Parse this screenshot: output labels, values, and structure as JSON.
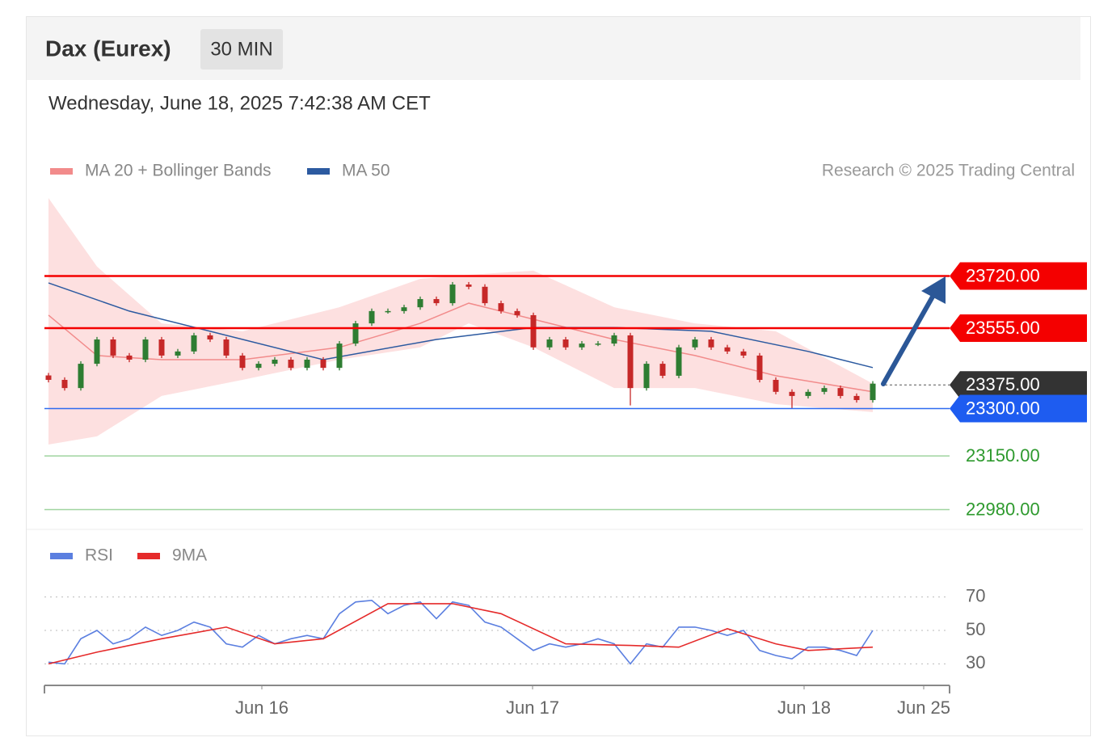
{
  "header": {
    "title": "Dax (Eurex)",
    "interval": "30 MIN",
    "date": "Wednesday, June 18, 2025 7:42:38 AM CET",
    "credit": "Research © 2025 Trading Central"
  },
  "chart_data": [
    {
      "type": "candlestick",
      "xlim": [
        -0.25,
        55.75
      ],
      "ylim": [
        22930,
        23980
      ],
      "up_color": "#2e7d32",
      "down_color": "#c62828",
      "open": [
        23405,
        23391,
        23365,
        23442,
        23519,
        23468,
        23455,
        23519,
        23468,
        23481,
        23532,
        23519,
        23468,
        23429,
        23442,
        23455,
        23429,
        23455,
        23429,
        23506,
        23570,
        23609,
        23609,
        23621,
        23647,
        23634,
        23693,
        23686,
        23634,
        23609,
        23596,
        23494,
        23519,
        23494,
        23506,
        23506,
        23532,
        23365,
        23442,
        23404,
        23494,
        23519,
        23494,
        23481,
        23468,
        23391,
        23353,
        23340,
        23353,
        23365,
        23340,
        23327
      ],
      "high": [
        23413,
        23399,
        23450,
        23527,
        23527,
        23476,
        23527,
        23527,
        23489,
        23540,
        23540,
        23527,
        23476,
        23450,
        23463,
        23463,
        23463,
        23463,
        23514,
        23578,
        23617,
        23617,
        23629,
        23655,
        23655,
        23701,
        23701,
        23694,
        23642,
        23617,
        23604,
        23527,
        23527,
        23514,
        23514,
        23540,
        23540,
        23450,
        23450,
        23502,
        23527,
        23527,
        23502,
        23489,
        23476,
        23399,
        23361,
        23361,
        23373,
        23373,
        23348,
        23387
      ],
      "low": [
        23383,
        23357,
        23357,
        23434,
        23460,
        23447,
        23447,
        23460,
        23460,
        23473,
        23511,
        23460,
        23421,
        23421,
        23434,
        23421,
        23421,
        23421,
        23421,
        23498,
        23562,
        23601,
        23601,
        23613,
        23626,
        23626,
        23678,
        23626,
        23601,
        23588,
        23486,
        23486,
        23486,
        23486,
        23498,
        23498,
        23310,
        23357,
        23396,
        23396,
        23486,
        23486,
        23473,
        23460,
        23383,
        23345,
        23300,
        23332,
        23345,
        23332,
        23319,
        23319
      ],
      "close": [
        23391,
        23365,
        23442,
        23519,
        23468,
        23455,
        23519,
        23468,
        23481,
        23532,
        23519,
        23468,
        23429,
        23442,
        23455,
        23429,
        23455,
        23429,
        23506,
        23570,
        23609,
        23609,
        23621,
        23647,
        23634,
        23693,
        23686,
        23634,
        23609,
        23596,
        23494,
        23519,
        23494,
        23506,
        23506,
        23532,
        23365,
        23442,
        23404,
        23494,
        23519,
        23494,
        23481,
        23468,
        23391,
        23353,
        23340,
        23353,
        23365,
        23340,
        23327,
        23379
      ],
      "overlays": [
        {
          "name": "MA 20 + Bollinger Bands",
          "color": "#f28b8b",
          "band_color": "#fde0e0",
          "x": [
            0,
            3,
            7,
            12,
            18,
            23,
            26,
            30,
            35,
            40,
            45,
            51
          ],
          "values": [
            23596,
            23468,
            23455,
            23455,
            23494,
            23570,
            23634,
            23583,
            23519,
            23468,
            23404,
            23353
          ],
          "upper": [
            23967,
            23750,
            23570,
            23545,
            23621,
            23711,
            23724,
            23737,
            23621,
            23570,
            23545,
            23379
          ],
          "lower": [
            23186,
            23212,
            23340,
            23391,
            23455,
            23494,
            23570,
            23494,
            23365,
            23365,
            23314,
            23289
          ]
        },
        {
          "name": "MA 50",
          "color": "#2c5aa0",
          "x": [
            0,
            5,
            10,
            17,
            24,
            30,
            35,
            41,
            47,
            51
          ],
          "values": [
            23698,
            23609,
            23545,
            23455,
            23519,
            23557,
            23557,
            23545,
            23481,
            23430
          ]
        }
      ],
      "levels": [
        {
          "value": 23720,
          "label": "23720.00",
          "color": "#f40000",
          "style": "tag"
        },
        {
          "value": 23555,
          "label": "23555.00",
          "color": "#f40000",
          "style": "tag"
        },
        {
          "value": 23375,
          "label": "23375.00",
          "color": "#333333",
          "style": "tag"
        },
        {
          "value": 23300,
          "label": "23300.00",
          "color": "#1e5cf0",
          "style": "tag"
        },
        {
          "value": 23150,
          "label": "23150.00",
          "color": "#2e9a2e",
          "style": "text"
        },
        {
          "value": 22980,
          "label": "22980.00",
          "color": "#2e9a2e",
          "style": "text"
        }
      ]
    },
    {
      "type": "line",
      "xlim": [
        -0.25,
        55.75
      ],
      "ylim": [
        21,
        79
      ],
      "yticks": [
        70,
        50,
        30
      ],
      "xticks": [
        {
          "value": 13.2,
          "label": "Jun 16"
        },
        {
          "value": 29.95,
          "label": "Jun 17"
        },
        {
          "value": 46.75,
          "label": "Jun 18"
        },
        {
          "value": 54.15,
          "label": "Jun 25"
        }
      ],
      "series": [
        {
          "name": "RSI",
          "color": "#5b7fe0",
          "x": [
            0,
            1,
            2,
            3,
            4,
            5,
            6,
            7,
            8,
            9,
            10,
            11,
            12,
            13,
            14,
            15,
            16,
            17,
            18,
            19,
            20,
            21,
            22,
            23,
            24,
            25,
            26,
            27,
            28,
            29,
            30,
            31,
            32,
            33,
            34,
            35,
            36,
            37,
            38,
            39,
            40,
            41,
            42,
            43,
            44,
            45,
            46,
            47,
            48,
            49,
            50,
            51
          ],
          "values": [
            31,
            30,
            45,
            50,
            42,
            45,
            52,
            47,
            50,
            55,
            52,
            42,
            40,
            47,
            42,
            45,
            47,
            45,
            60,
            67,
            68,
            60,
            65,
            67,
            57,
            67,
            65,
            55,
            52,
            45,
            38,
            42,
            40,
            42,
            45,
            42,
            30,
            42,
            40,
            52,
            52,
            50,
            47,
            50,
            38,
            35,
            33,
            40,
            40,
            38,
            35,
            50
          ]
        },
        {
          "name": "9MA",
          "color": "#e52a2a",
          "x": [
            0,
            3,
            7,
            11,
            14,
            17,
            21,
            25,
            28,
            32,
            36,
            39,
            42,
            45,
            47,
            51
          ],
          "values": [
            30,
            37,
            45,
            52,
            42,
            45,
            66,
            66,
            60,
            42,
            41,
            40,
            51,
            42,
            38,
            40
          ]
        }
      ]
    }
  ]
}
